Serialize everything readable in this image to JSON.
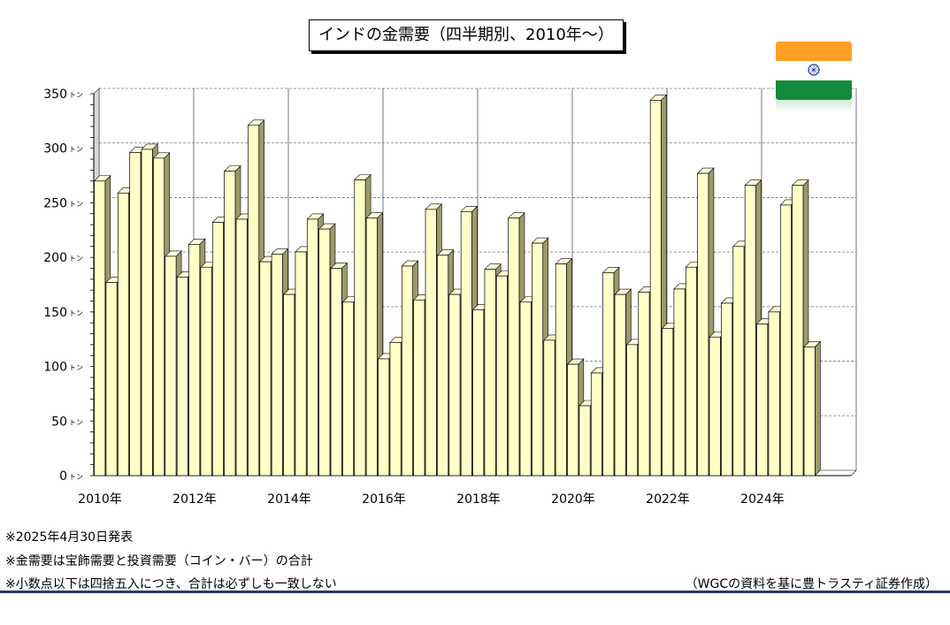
{
  "title": "インドの金需要（四半期別、2010年～）",
  "chart_data": {
    "type": "bar",
    "ylabel_unit": "トン",
    "ylim": [
      0,
      350
    ],
    "yticks": [
      0,
      50,
      100,
      150,
      200,
      250,
      300,
      350
    ],
    "x_tick_labels": [
      "2010年",
      "2012年",
      "2014年",
      "2016年",
      "2018年",
      "2020年",
      "2022年",
      "2024年"
    ],
    "x_tick_quarter_index": [
      0,
      8,
      16,
      24,
      32,
      40,
      48,
      56
    ],
    "total_slots": 64,
    "grid": true,
    "values": [
      270,
      177,
      259,
      296,
      299,
      291,
      201,
      182,
      212,
      191,
      232,
      279,
      235,
      321,
      196,
      203,
      166,
      205,
      235,
      226,
      190,
      159,
      271,
      236,
      107,
      122,
      192,
      161,
      244,
      202,
      166,
      242,
      152,
      189,
      183,
      236,
      159,
      213,
      124,
      194,
      102,
      64,
      94,
      186,
      166,
      120,
      168,
      344,
      135,
      171,
      191,
      277,
      127,
      158,
      210,
      266,
      139,
      150,
      248,
      266,
      118
    ],
    "bar_color": "#ffffc8",
    "bar_side_color": "#9c9a6a"
  },
  "notes": [
    "※2025年4月30日発表",
    "※金需要は宝飾需要と投資需要（コイン・バー）の合計",
    "※小数点以下は四捨五入につき、合計は必ずしも一致しない"
  ],
  "source": "（WGCの資料を基に豊トラスティ証券作成）",
  "flag_icon": "india-flag-icon"
}
